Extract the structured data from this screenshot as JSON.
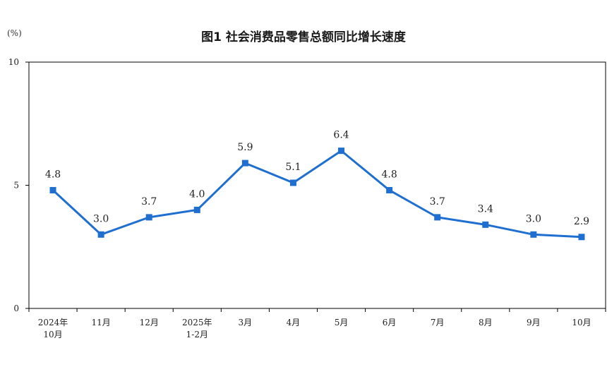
{
  "chart_data": {
    "type": "line",
    "title": "图1  社会消费品零售总额同比增长速度",
    "unit": "(%)",
    "categories": [
      [
        "2024年",
        "10月"
      ],
      [
        "11月"
      ],
      [
        "12月"
      ],
      [
        "2025年",
        "1-2月"
      ],
      [
        "3月"
      ],
      [
        "4月"
      ],
      [
        "5月"
      ],
      [
        "6月"
      ],
      [
        "7月"
      ],
      [
        "8月"
      ],
      [
        "9月"
      ],
      [
        "10月"
      ]
    ],
    "values": [
      4.8,
      3.0,
      3.7,
      4.0,
      5.9,
      5.1,
      6.4,
      4.8,
      3.7,
      3.4,
      3.0,
      2.9
    ],
    "value_labels": [
      "4.8",
      "3.0",
      "3.7",
      "4.0",
      "5.9",
      "5.1",
      "6.4",
      "4.8",
      "3.7",
      "3.4",
      "3.0",
      "2.9"
    ],
    "ylim": [
      0,
      10
    ],
    "yticks": [
      "0",
      "5",
      "10"
    ],
    "ytick_values": [
      0,
      5,
      10
    ],
    "grid": false,
    "legend": "none",
    "line_color": "#1f6fd0"
  }
}
